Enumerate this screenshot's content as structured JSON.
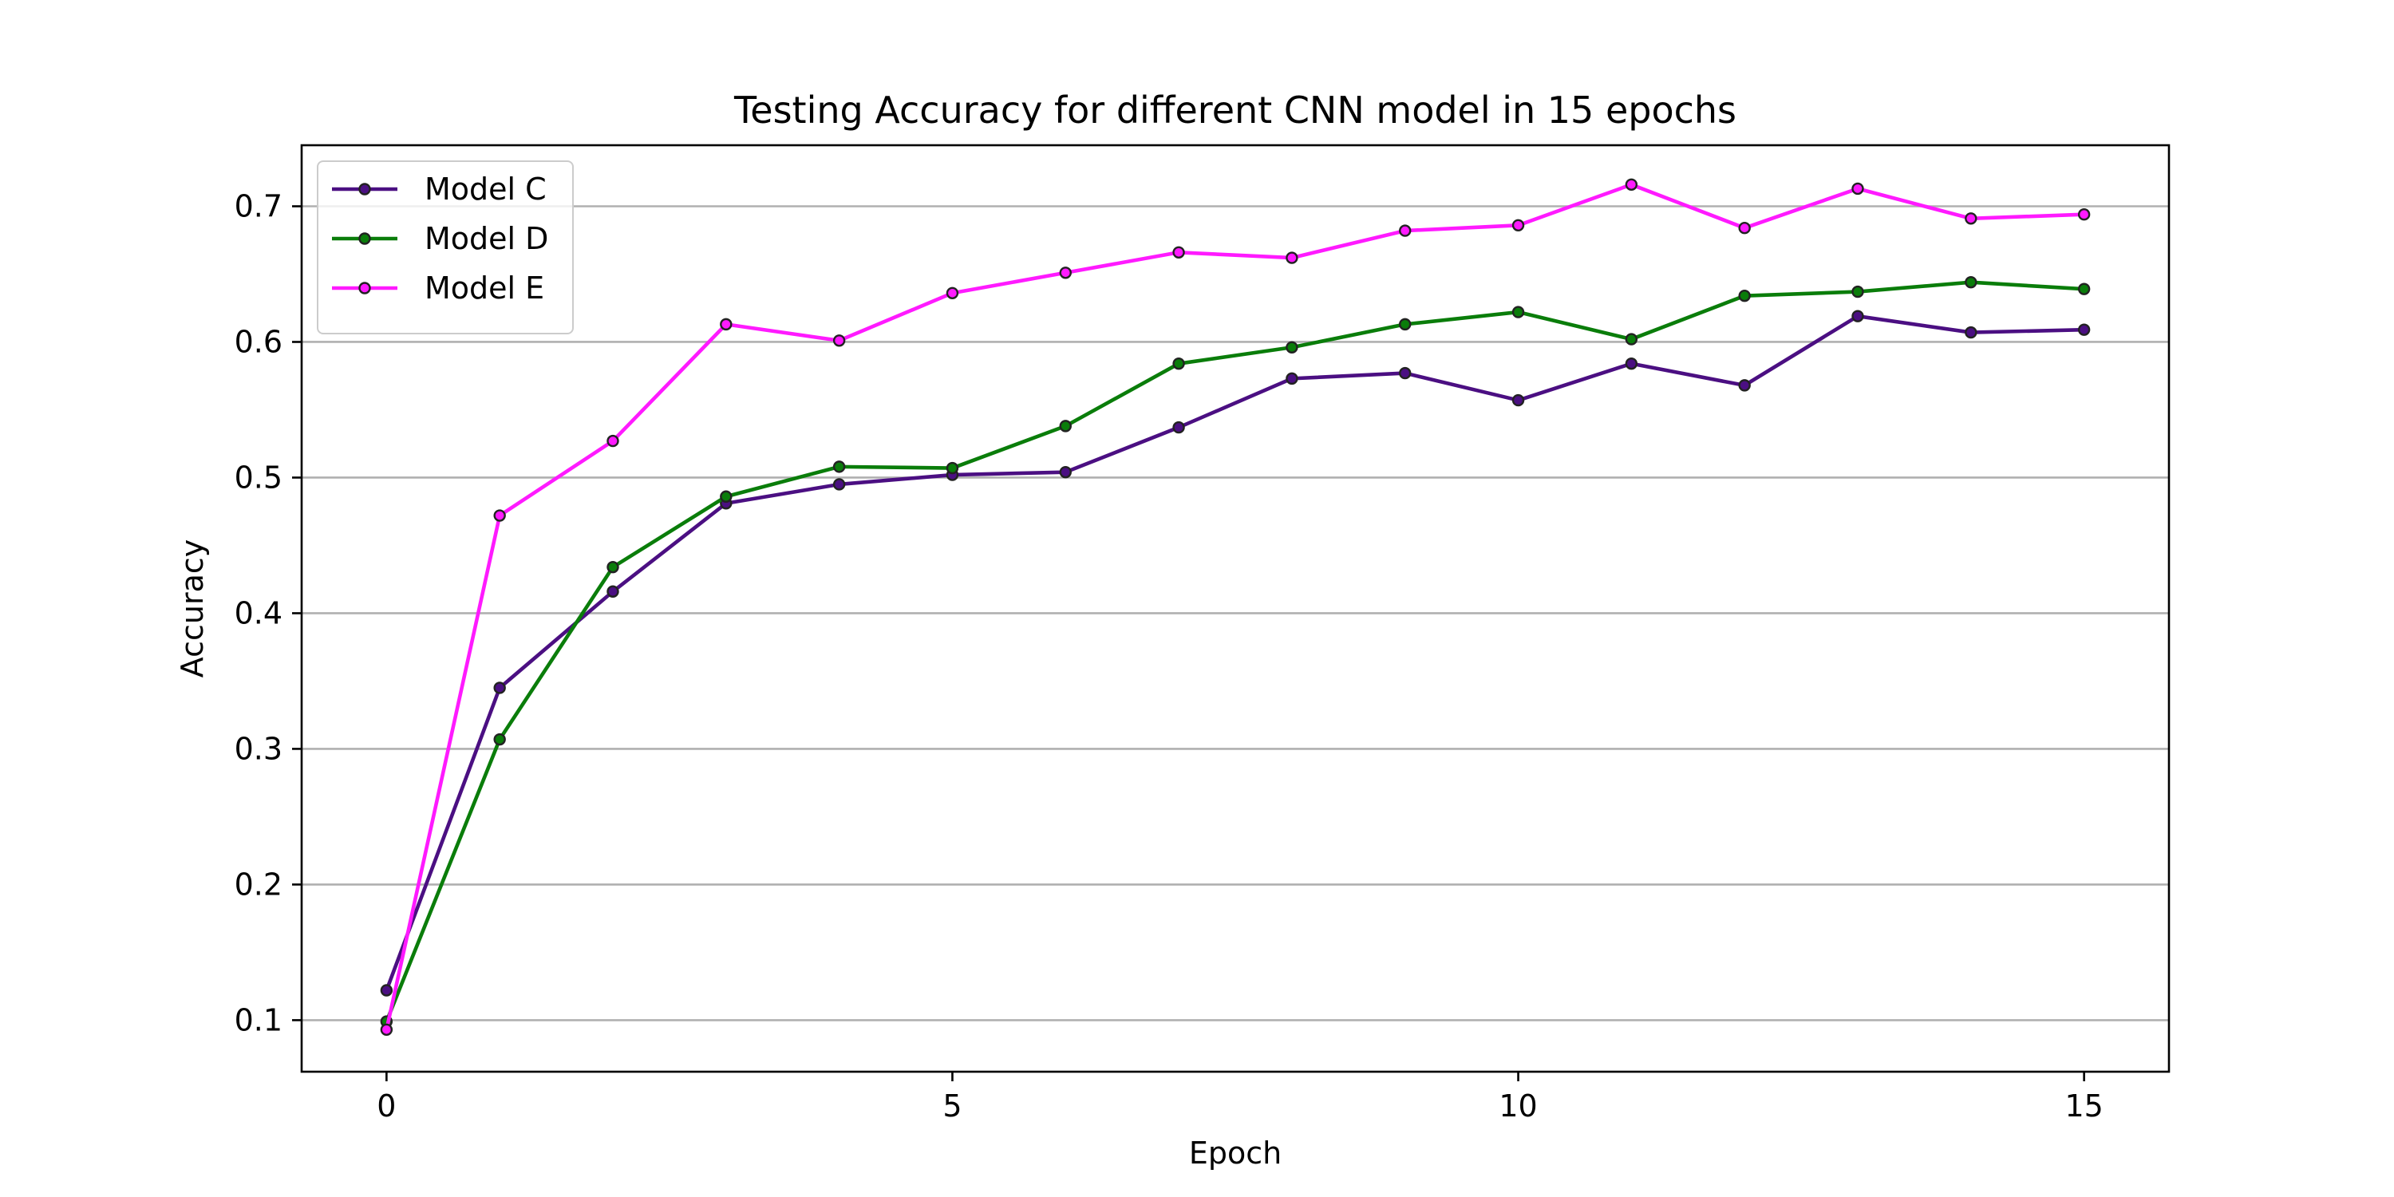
{
  "chart_data": {
    "type": "line",
    "title": "Testing Accuracy for different CNN model in 15 epochs",
    "xlabel": "Epoch",
    "ylabel": "Accuracy",
    "xlim": [
      -0.75,
      15.75
    ],
    "ylim": [
      0.062,
      0.745
    ],
    "x_ticks": [
      0,
      5,
      10,
      15
    ],
    "x_tick_labels": [
      "0",
      "5",
      "10",
      "15"
    ],
    "y_ticks": [
      0.1,
      0.2,
      0.3,
      0.4,
      0.5,
      0.6,
      0.7
    ],
    "y_tick_labels": [
      "0.1",
      "0.2",
      "0.3",
      "0.4",
      "0.5",
      "0.6",
      "0.7"
    ],
    "grid": "horizontal",
    "legend_position": "upper-left",
    "x": [
      0,
      1,
      2,
      3,
      4,
      5,
      6,
      7,
      8,
      9,
      10,
      11,
      12,
      13,
      14,
      15
    ],
    "series": [
      {
        "name": "Model C",
        "color": "#4b0f82",
        "values": [
          0.122,
          0.345,
          0.416,
          0.481,
          0.495,
          0.502,
          0.504,
          0.537,
          0.573,
          0.577,
          0.557,
          0.584,
          0.568,
          0.619,
          0.607,
          0.609
        ]
      },
      {
        "name": "Model D",
        "color": "#0a7d0a",
        "values": [
          0.099,
          0.307,
          0.434,
          0.486,
          0.508,
          0.507,
          0.538,
          0.584,
          0.596,
          0.613,
          0.622,
          0.602,
          0.634,
          0.637,
          0.644,
          0.639
        ]
      },
      {
        "name": "Model E",
        "color": "#ff1aff",
        "values": [
          0.093,
          0.472,
          0.527,
          0.613,
          0.601,
          0.636,
          0.651,
          0.666,
          0.662,
          0.682,
          0.686,
          0.716,
          0.684,
          0.713,
          0.691,
          0.694
        ]
      }
    ],
    "marker_edge_color": "#222222"
  }
}
